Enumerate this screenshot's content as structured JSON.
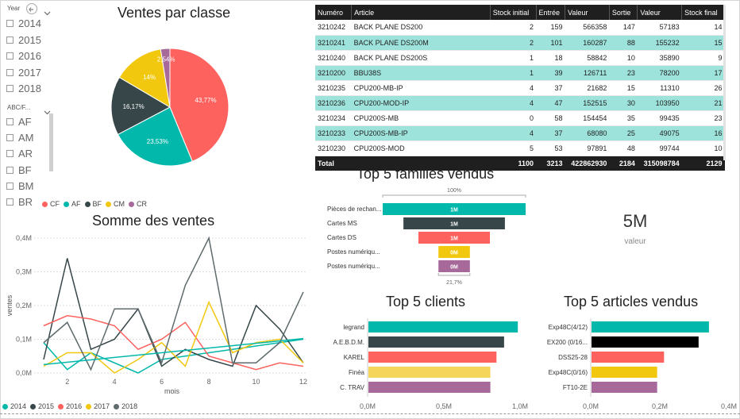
{
  "slicer_year": {
    "title": "Year",
    "items": [
      "2014",
      "2015",
      "2016",
      "2017",
      "2018"
    ]
  },
  "slicer_abc": {
    "title": "ABC/F...",
    "items": [
      "AF",
      "AM",
      "AR",
      "BF",
      "BM",
      "BR"
    ]
  },
  "table": {
    "headers": [
      "Numéro",
      "Article",
      "Stock initial",
      "Entrée",
      "Valeur",
      "Sortie",
      "Valeur",
      "Stock final"
    ],
    "rows": [
      [
        "3210242",
        "BACK PLANE DS200",
        "2",
        "159",
        "566358",
        "147",
        "57183",
        "14"
      ],
      [
        "3210241",
        "BACK PLANE DS200M",
        "2",
        "101",
        "160287",
        "88",
        "155232",
        "15"
      ],
      [
        "3210240",
        "BACK PLANE DS200S",
        "1",
        "18",
        "58842",
        "10",
        "35890",
        "9"
      ],
      [
        "3210200",
        "BBU38S",
        "1",
        "39",
        "126711",
        "23",
        "78200",
        "17"
      ],
      [
        "3210235",
        "CPU200-MB-IP",
        "4",
        "37",
        "21682",
        "15",
        "11310",
        "26"
      ],
      [
        "3210236",
        "CPU200-MOD-IP",
        "4",
        "47",
        "152515",
        "30",
        "103950",
        "21"
      ],
      [
        "3210234",
        "CPU200S-MB",
        "0",
        "58",
        "154454",
        "35",
        "99435",
        "23"
      ],
      [
        "3210233",
        "CPU200S-MB-IP",
        "4",
        "37",
        "68080",
        "25",
        "49075",
        "16"
      ],
      [
        "3210230",
        "CPU200S-MOD",
        "5",
        "53",
        "97891",
        "48",
        "99744",
        "10"
      ]
    ],
    "total": [
      "Total",
      "",
      "1100",
      "3213",
      "422862930",
      "2184",
      "315098784",
      "2129"
    ]
  },
  "kpi": {
    "value": "5M",
    "label": "valeur"
  },
  "colors": {
    "teal": "#01b8aa",
    "dark": "#374649",
    "red": "#fd625e",
    "yellow": "#f2c80f",
    "purple": "#a66999",
    "grey": "#5f6b6d",
    "black": "#000000"
  },
  "chart_data": [
    {
      "type": "pie",
      "title": "Ventes par classe",
      "labels": [
        "CF",
        "AF",
        "BF",
        "CM",
        "CR"
      ],
      "values": [
        43.77,
        23.53,
        16.17,
        14.0,
        2.54
      ],
      "value_labels": [
        "43,77%",
        "23,53%",
        "16,17%",
        "14%",
        "2,54%"
      ],
      "legend": "bottom"
    },
    {
      "type": "line",
      "title": "Somme des ventes",
      "xlabel": "mois",
      "ylabel": "ventes",
      "x": [
        1,
        2,
        3,
        4,
        5,
        6,
        7,
        8,
        9,
        10,
        11,
        12
      ],
      "xticks": [
        "2",
        "4",
        "6",
        "8",
        "10",
        "12"
      ],
      "yticks": [
        "0,0M",
        "0,1M",
        "0,2M",
        "0,3M",
        "0,4M"
      ],
      "ylim": [
        0,
        0.4
      ],
      "series": [
        {
          "name": "2014",
          "values": [
            0.09,
            0.01,
            0.06,
            0.03,
            0.0,
            0.04,
            0.05,
            0.06,
            0.07,
            0.08,
            0.09,
            0.1
          ]
        },
        {
          "name": "2015",
          "values": [
            0.04,
            0.34,
            0.07,
            0.1,
            0.19,
            0.02,
            0.07,
            0.04,
            0.02,
            0.2,
            0.13,
            0.03
          ]
        },
        {
          "name": "2016",
          "values": [
            0.14,
            0.17,
            0.16,
            0.14,
            0.07,
            0.1,
            0.15,
            0.05,
            0.03,
            0.01,
            0.03,
            0.02
          ]
        },
        {
          "name": "2017",
          "values": [
            0.02,
            0.06,
            0.06,
            0.0,
            0.04,
            0.09,
            0.02,
            0.21,
            0.06,
            0.09,
            0.1,
            0.03
          ]
        },
        {
          "name": "2018",
          "values": [
            0.09,
            0.15,
            0.01,
            0.19,
            0.19,
            0.03,
            0.26,
            0.4,
            0.03,
            0.03,
            0.09,
            0.24
          ]
        }
      ],
      "legend": "bottom"
    },
    {
      "type": "bar",
      "title": "Top 5 familles vendus",
      "categories": [
        "Pièces de rechan...",
        "Cartes MS",
        "Cartes DS",
        "Postes numériqu...",
        "Postes numériqu..."
      ],
      "values": [
        1.0,
        0.71,
        0.5,
        0.22,
        0.22
      ],
      "value_labels": [
        "1M",
        "1M",
        "1M",
        "0M",
        "0M"
      ],
      "top_label": "100%",
      "bottom_label": "21,7%"
    },
    {
      "type": "bar",
      "title": "Top 5 clients",
      "categories": [
        "legrand",
        "A.E.B.D.M.",
        "KAREL",
        "Finéa",
        "C. TRAV"
      ],
      "values": [
        0.98,
        0.89,
        0.84,
        0.8,
        0.8
      ],
      "xticks": [
        "0,0M",
        "0,5M",
        "1,0M"
      ],
      "xlim": [
        0,
        1.0
      ]
    },
    {
      "type": "bar",
      "title": "Top 5 articles vendus",
      "categories": [
        "Exp48C(4/12)",
        "EX200 (0/16...",
        "DSS25-28",
        "Exp48C(0/16)",
        "FT10-2E"
      ],
      "values": [
        0.34,
        0.31,
        0.21,
        0.19,
        0.19
      ],
      "xticks": [
        "0,0M",
        "0,2M",
        "0,4M"
      ],
      "xlim": [
        0,
        0.4
      ]
    }
  ]
}
